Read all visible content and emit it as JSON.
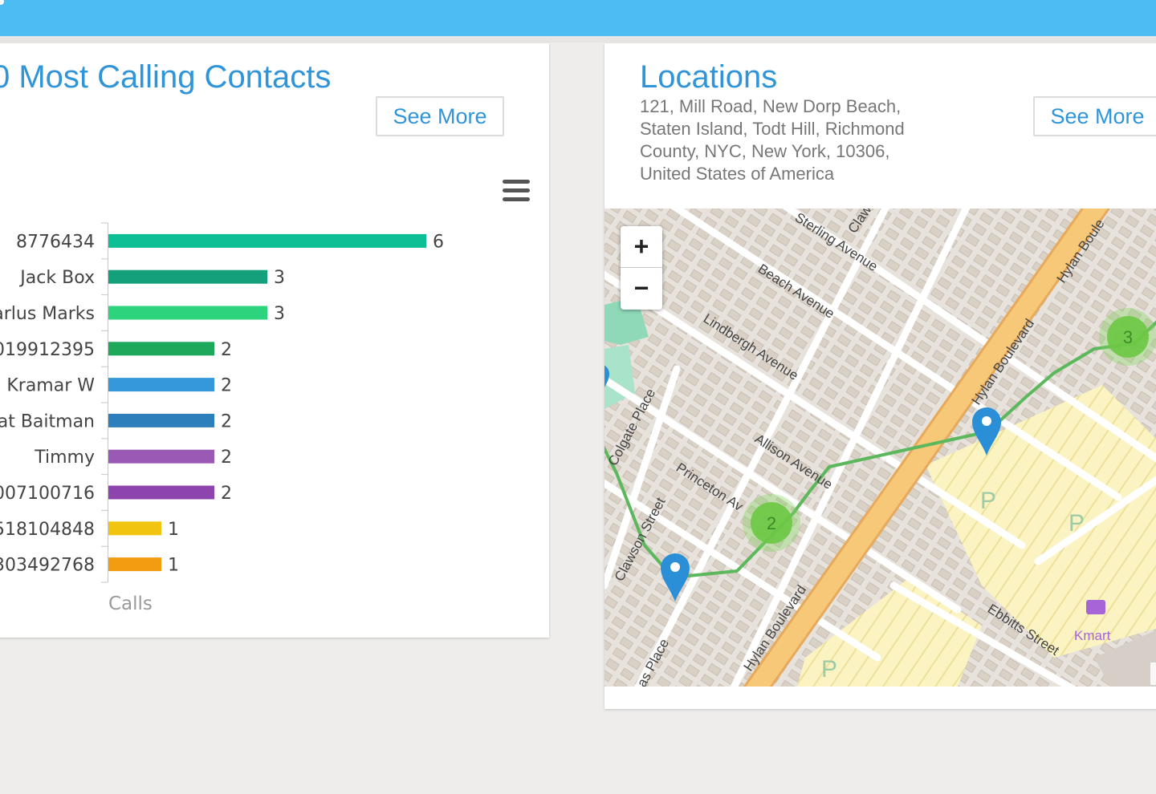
{
  "left_card": {
    "title": "0 Most Calling Contacts",
    "see_more_label": "See More",
    "menu_icon": "hamburger-menu-icon"
  },
  "chart_data": {
    "type": "bar",
    "orientation": "horizontal",
    "categories": [
      "8776434",
      "Jack Box",
      "arlus Marks",
      "019912395",
      "Kramar W",
      "Pat Baitman",
      "Timmy",
      "007100716",
      "518104848",
      "303492768"
    ],
    "values": [
      6,
      3,
      3,
      2,
      2,
      2,
      2,
      2,
      1,
      1
    ],
    "bar_colors": [
      "#0dbf95",
      "#13a07a",
      "#2ed37e",
      "#1ea85c",
      "#3498db",
      "#2d7fbb",
      "#9b59b6",
      "#8e44ad",
      "#f1c40f",
      "#f39c12"
    ],
    "xlabel": "Calls",
    "data_labels": true
  },
  "right_card": {
    "title": "Locations",
    "address": "121, Mill Road, New Dorp Beach, Staten Island, Todt Hill, Richmond County, NYC, New York, 10306, United States of America",
    "see_more_label": "See More"
  },
  "map": {
    "zoom_in_label": "+",
    "zoom_out_label": "−",
    "attribution": "L",
    "streets": [
      "Sterling Avenue",
      "Claw",
      "Beach Avenue",
      "Lindbergh Avenue",
      "Allison Avenue",
      "Princeton Av",
      "Colgate Place",
      "Clawson Street",
      "Hylan Boulevard",
      "Hylan Boule",
      "Ebbitts Street",
      "as Place"
    ],
    "poi": "Kmart",
    "parking_label": "P",
    "clusters": [
      "3",
      "2"
    ],
    "colors": {
      "route": "#5cb85c",
      "marker": "#2a8fd6",
      "cluster": "#7dd35a",
      "boulevard": "#f6bf6a"
    }
  }
}
